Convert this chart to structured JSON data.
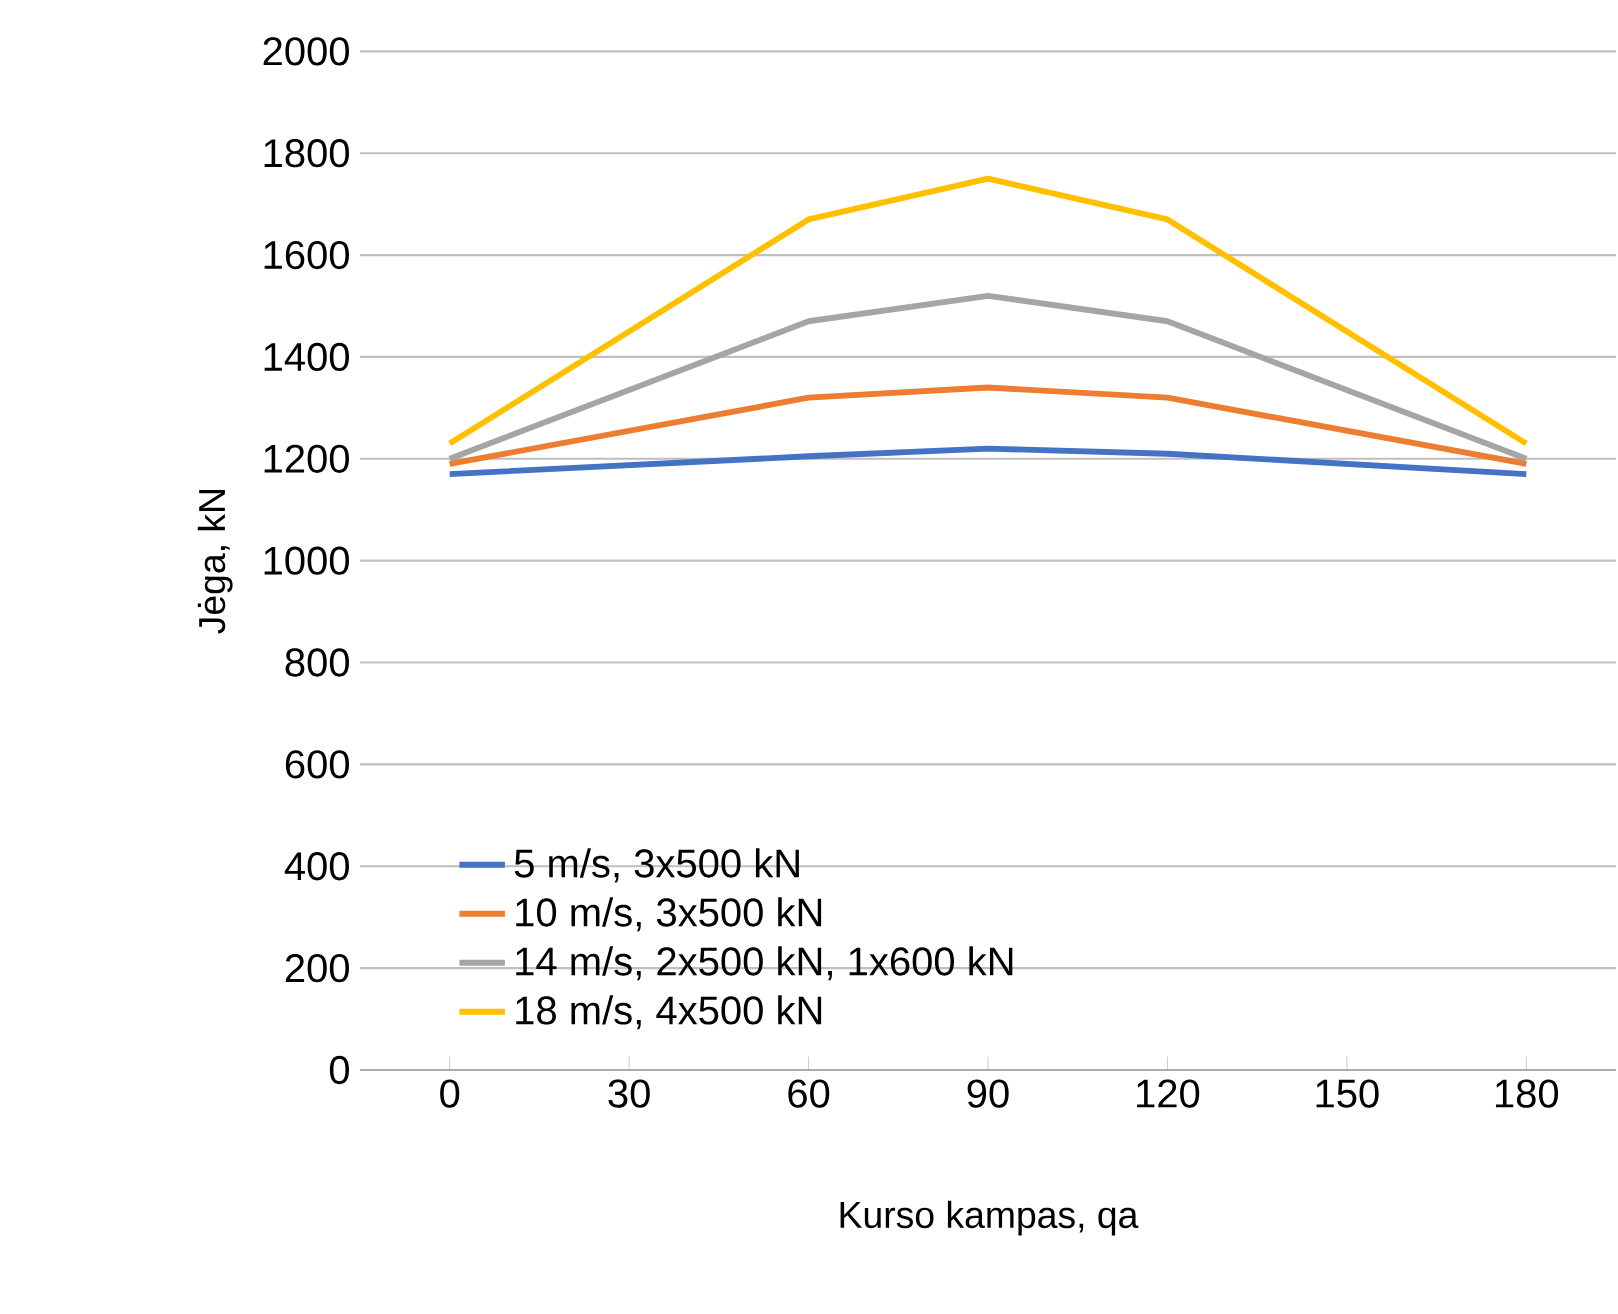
{
  "chart_data": {
    "type": "line",
    "xlabel": "Kurso kampas, qa",
    "ylabel": "Jėga, kN",
    "x": [
      0,
      60,
      90,
      120,
      180
    ],
    "series": [
      {
        "name": "5 m/s, 3x500 kN",
        "color": "#4472c4",
        "values": [
          1170,
          1205,
          1220,
          1210,
          1170
        ]
      },
      {
        "name": "10 m/s, 3x500 kN",
        "color": "#ed7d31",
        "values": [
          1190,
          1320,
          1340,
          1320,
          1190
        ]
      },
      {
        "name": "14 m/s, 2x500 kN, 1x600 kN",
        "color": "#a5a5a5",
        "values": [
          1200,
          1470,
          1520,
          1470,
          1200
        ]
      },
      {
        "name": "18 m/s, 4x500 kN",
        "color": "#ffc000",
        "values": [
          1230,
          1670,
          1750,
          1670,
          1230
        ]
      }
    ],
    "xlim": [
      -15,
      195
    ],
    "xticks": [
      0,
      30,
      60,
      90,
      120,
      150,
      180
    ],
    "ylim": [
      0,
      2000
    ],
    "yticks": [
      0,
      200,
      400,
      600,
      800,
      1000,
      1200,
      1400,
      1600,
      1800,
      2000
    ],
    "grid": "y",
    "legend": "bottom left",
    "marker": "none",
    "line_style": "solid"
  }
}
